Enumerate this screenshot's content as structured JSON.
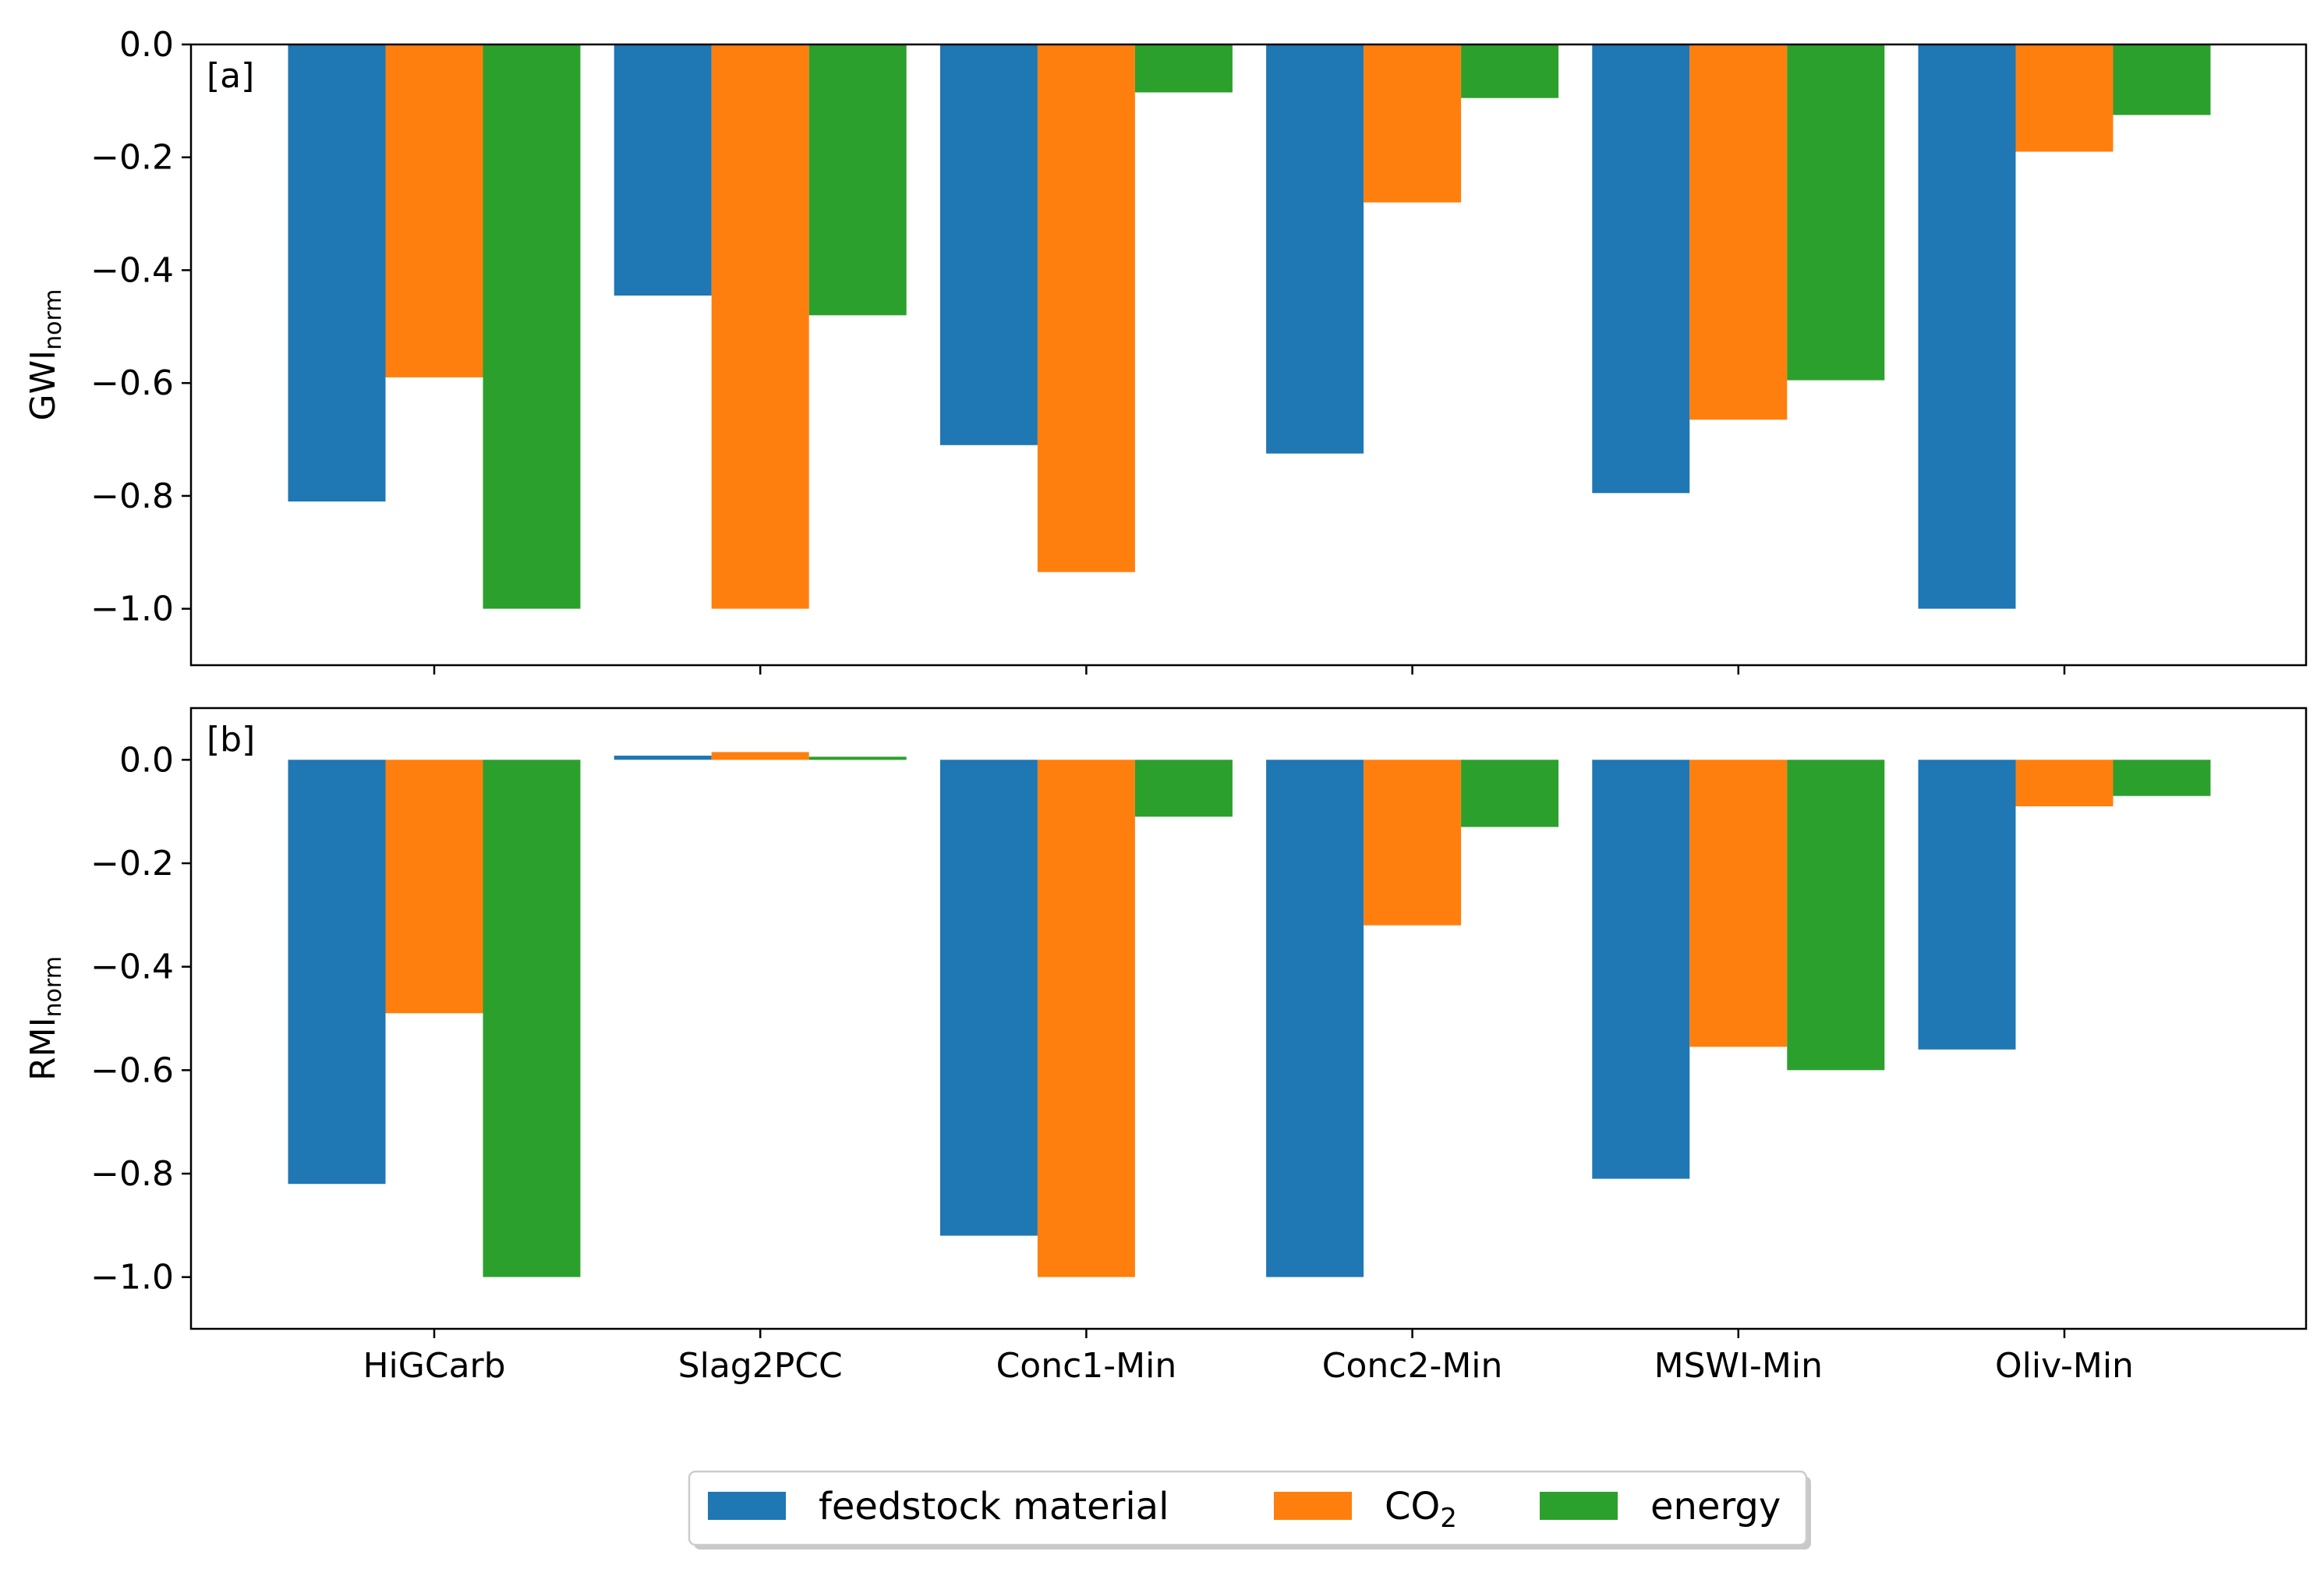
{
  "chart_data": {
    "type": "bar",
    "categories": [
      "HiGCarb",
      "Slag2PCC",
      "Conc1-Min",
      "Conc2-Min",
      "MSWI-Min",
      "Oliv-Min"
    ],
    "series_names": [
      "feedstock material",
      "CO2",
      "energy"
    ],
    "legend": [
      {
        "label": "feedstock material",
        "sub": "",
        "color": "#1f77b4"
      },
      {
        "label": "CO",
        "sub": "2",
        "color": "#ff7f0e"
      },
      {
        "label": "energy",
        "sub": "",
        "color": "#2ca02c"
      }
    ],
    "legend_position": "bottom-center",
    "panels": [
      {
        "tag": "[a]",
        "ylabel": {
          "main": "GWI",
          "sub": "norm"
        },
        "ylim": [
          -1.1,
          0.0
        ],
        "yticks": [
          0.0,
          -0.2,
          -0.4,
          -0.6,
          -0.8,
          -1.0
        ],
        "ytick_labels": [
          "0.0",
          "−0.2",
          "−0.4",
          "−0.6",
          "−0.8",
          "−1.0"
        ],
        "show_xticklabels": false,
        "series": [
          {
            "name": "feedstock material",
            "color": "#1f77b4",
            "values": [
              -0.81,
              -0.445,
              -0.71,
              -0.725,
              -0.795,
              -1.0
            ]
          },
          {
            "name": "CO2",
            "color": "#ff7f0e",
            "values": [
              -0.59,
              -1.0,
              -0.935,
              -0.28,
              -0.665,
              -0.19
            ]
          },
          {
            "name": "energy",
            "color": "#2ca02c",
            "values": [
              -1.0,
              -0.48,
              -0.085,
              -0.095,
              -0.595,
              -0.125
            ]
          }
        ]
      },
      {
        "tag": "[b]",
        "ylabel": {
          "main": "RMI",
          "sub": "norm"
        },
        "ylim": [
          -1.1,
          0.1
        ],
        "yticks": [
          0.0,
          -0.2,
          -0.4,
          -0.6,
          -0.8,
          -1.0
        ],
        "ytick_labels": [
          "0.0",
          "−0.2",
          "−0.4",
          "−0.6",
          "−0.8",
          "−1.0"
        ],
        "show_xticklabels": true,
        "series": [
          {
            "name": "feedstock material",
            "color": "#1f77b4",
            "values": [
              -0.82,
              0.008,
              -0.92,
              -1.0,
              -0.81,
              -0.56
            ]
          },
          {
            "name": "CO2",
            "color": "#ff7f0e",
            "values": [
              -0.49,
              0.015,
              -1.0,
              -0.32,
              -0.555,
              -0.09
            ]
          },
          {
            "name": "energy",
            "color": "#2ca02c",
            "values": [
              -1.0,
              0.006,
              -0.11,
              -0.13,
              -0.6,
              -0.07
            ]
          }
        ]
      }
    ]
  }
}
